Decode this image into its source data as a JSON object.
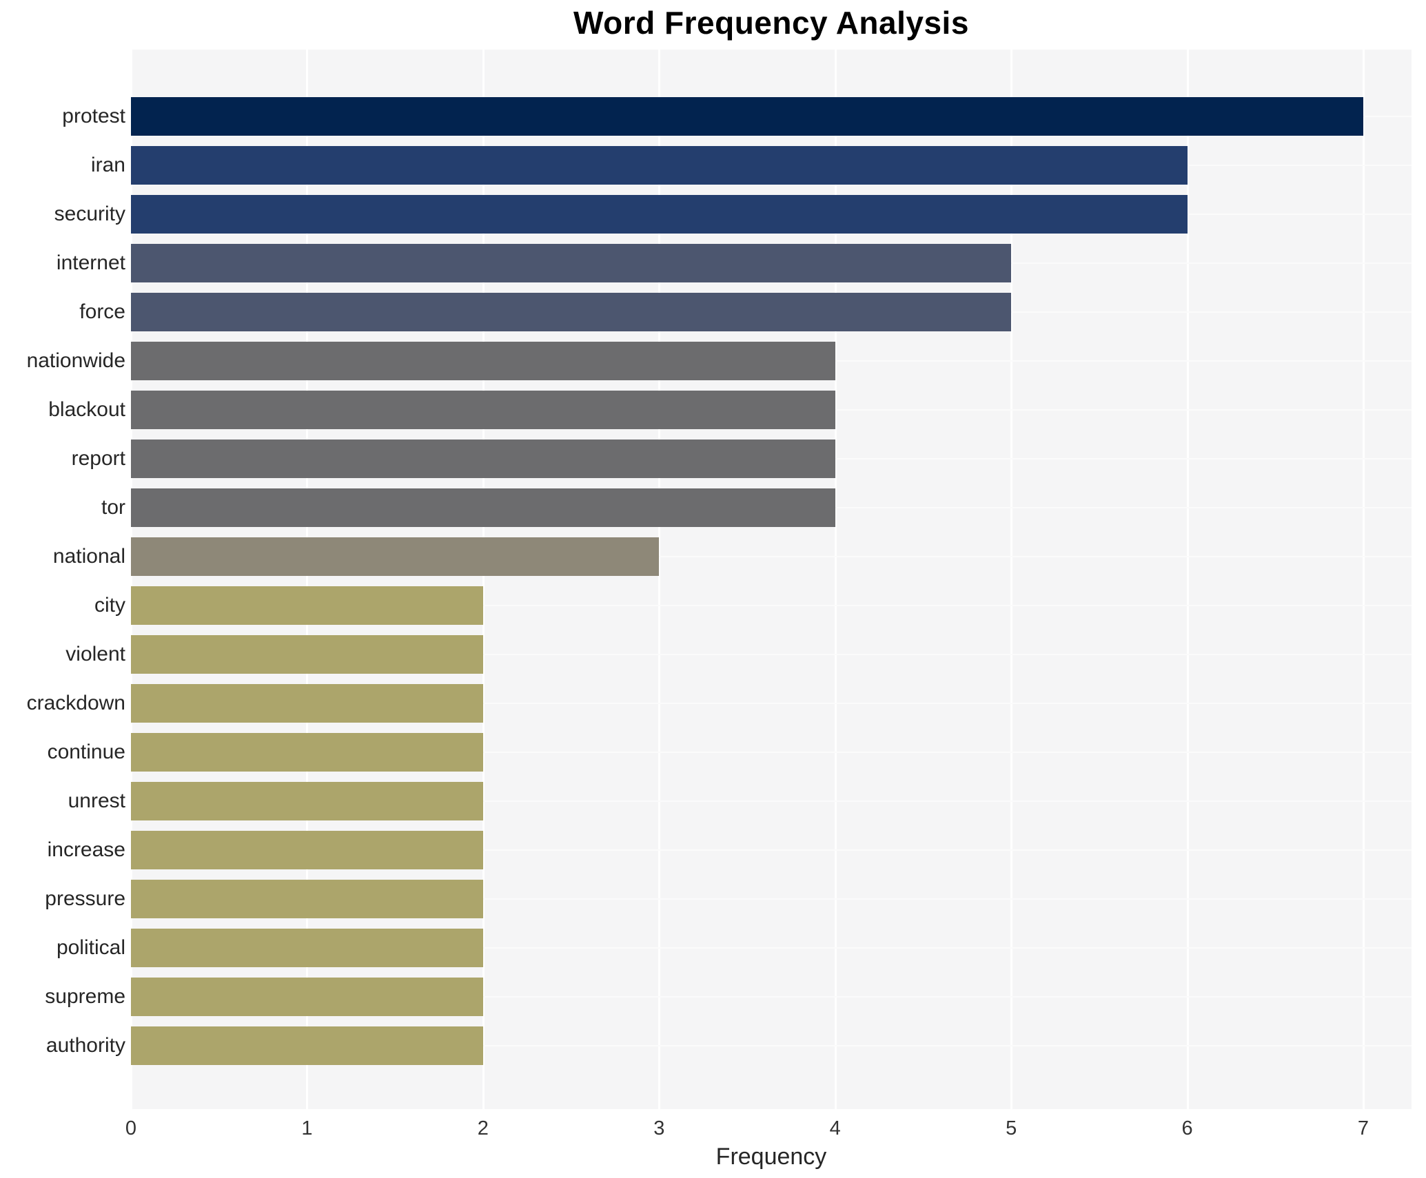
{
  "title": "Word Frequency Analysis",
  "chart_data": {
    "type": "bar",
    "orientation": "horizontal",
    "title": "Word Frequency Analysis",
    "xlabel": "Frequency",
    "ylabel": "",
    "categories": [
      "protest",
      "iran",
      "security",
      "internet",
      "force",
      "nationwide",
      "blackout",
      "report",
      "tor",
      "national",
      "city",
      "violent",
      "crackdown",
      "continue",
      "unrest",
      "increase",
      "pressure",
      "political",
      "supreme",
      "authority"
    ],
    "values": [
      7,
      6,
      6,
      5,
      5,
      4,
      4,
      4,
      4,
      3,
      2,
      2,
      2,
      2,
      2,
      2,
      2,
      2,
      2,
      2
    ],
    "bar_colors": [
      "#02234f",
      "#243e6e",
      "#243e6e",
      "#4c566f",
      "#4c566f",
      "#6c6c6e",
      "#6c6c6e",
      "#6c6c6e",
      "#6c6c6e",
      "#8e8878",
      "#aca56b",
      "#aca56b",
      "#aca56b",
      "#aca56b",
      "#aca56b",
      "#aca56b",
      "#aca56b",
      "#aca56b",
      "#aca56b",
      "#aca56b"
    ],
    "value_color_map": {
      "7": "#02234f",
      "6": "#243e6e",
      "5": "#4c566f",
      "4": "#6c6c6e",
      "3": "#8e8878",
      "2": "#aca56b"
    },
    "xticks": [
      0,
      1,
      2,
      3,
      4,
      5,
      6,
      7
    ],
    "xlim": [
      0,
      7.27
    ],
    "grid": true,
    "legend": false,
    "plot_background": "#f5f5f6",
    "gridline_color": "#ffffff"
  }
}
